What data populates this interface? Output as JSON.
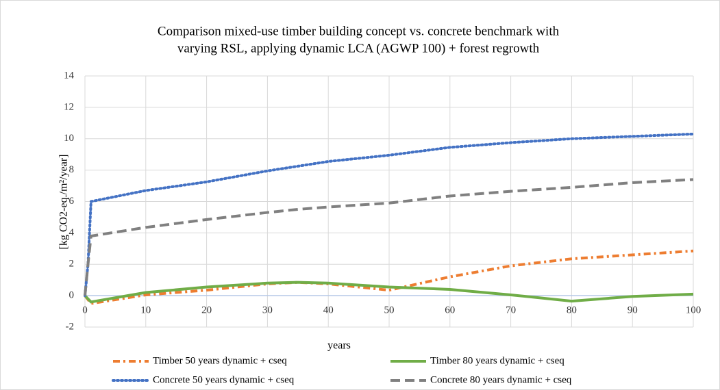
{
  "chart_data": {
    "type": "line",
    "title": [
      "Comparison mixed-use timber building concept vs. concrete benchmark with",
      "varying RSL, applying dynamic LCA (AGWP 100) + forest regrowth"
    ],
    "x_label": "years",
    "y_label": "[kg CO2-eq./m²/year]",
    "x": [
      0,
      0.5,
      1,
      10,
      20,
      30,
      35,
      40,
      50,
      60,
      70,
      80,
      90,
      100
    ],
    "series": [
      {
        "name": "Timber 50 years dynamic + cseq",
        "color": "#ed7d31",
        "style": "dash-dot",
        "values": [
          0,
          -0.25,
          -0.5,
          0.05,
          0.35,
          0.75,
          0.85,
          0.75,
          0.35,
          1.2,
          1.9,
          2.35,
          2.6,
          2.85
        ]
      },
      {
        "name": "Timber 80 years dynamic + cseq",
        "color": "#70ad47",
        "style": "solid",
        "values": [
          0,
          -0.2,
          -0.4,
          0.2,
          0.55,
          0.8,
          0.85,
          0.8,
          0.55,
          0.4,
          0.05,
          -0.35,
          -0.05,
          0.1
        ]
      },
      {
        "name": "Concrete 50 years dynamic + cseq",
        "color": "#4472c4",
        "style": "dotted",
        "values": [
          0,
          2,
          6.0,
          6.7,
          7.25,
          7.95,
          8.25,
          8.55,
          8.95,
          9.45,
          9.75,
          10.0,
          10.15,
          10.3
        ]
      },
      {
        "name": "Concrete 80 years dynamic + cseq",
        "color": "#808080",
        "style": "dashed",
        "values": [
          0,
          2,
          3.8,
          4.35,
          4.85,
          5.3,
          5.5,
          5.65,
          5.9,
          6.35,
          6.65,
          6.9,
          7.2,
          7.4
        ]
      }
    ],
    "xlim": [
      0,
      100
    ],
    "xticks": [
      0,
      10,
      20,
      30,
      40,
      50,
      60,
      70,
      80,
      90,
      100
    ],
    "ylim": [
      -2,
      14
    ],
    "yticks": [
      -2,
      0,
      2,
      4,
      6,
      8,
      10,
      12,
      14
    ],
    "grid": true,
    "legend": "bottom"
  }
}
